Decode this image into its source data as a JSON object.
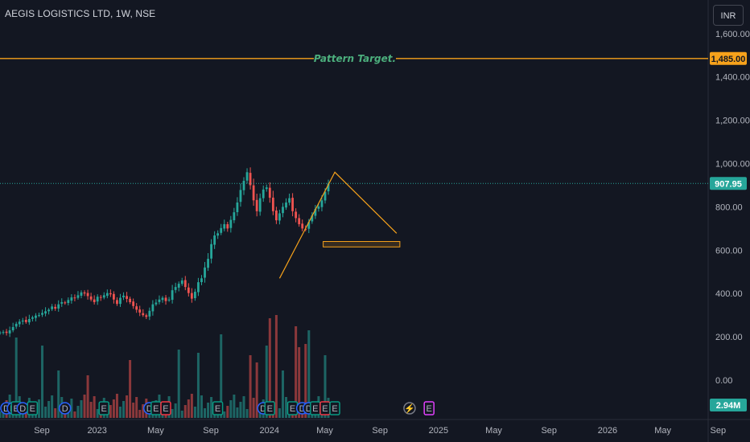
{
  "header": {
    "title": "AEGIS LOGISTICS LTD, 1W, NSE",
    "currency_button": "INR"
  },
  "colors": {
    "background": "#131722",
    "up": "#26a69a",
    "down": "#ef5350",
    "drawing": "#f7a21b",
    "annotation": "#4caf7d"
  },
  "chart_data": {
    "type": "candlestick",
    "y_ticks": [
      "1,600.00",
      "1,400.00",
      "1,200.00",
      "1,000.00",
      "800.00",
      "600.00",
      "400.00",
      "200.00",
      "0.00"
    ],
    "y_tick_values": [
      1600,
      1400,
      1200,
      1000,
      800,
      600,
      400,
      200,
      0
    ],
    "x_ticks": [
      {
        "label": "Sep",
        "t": 0
      },
      {
        "label": "2023",
        "t": 17
      },
      {
        "label": "May",
        "t": 35
      },
      {
        "label": "Sep",
        "t": 52
      },
      {
        "label": "2024",
        "t": 70
      },
      {
        "label": "May",
        "t": 87
      },
      {
        "label": "Sep",
        "t": 104
      },
      {
        "label": "2025",
        "t": 122
      },
      {
        "label": "May",
        "t": 139
      },
      {
        "label": "Sep",
        "t": 156
      },
      {
        "label": "2026",
        "t": 174
      },
      {
        "label": "May",
        "t": 191
      },
      {
        "label": "Sep",
        "t": 208
      }
    ],
    "last_price": 907.95,
    "last_price_label": "907.95",
    "volume_label": "2.94M",
    "target": {
      "value": 1485,
      "label": "1,485.00",
      "text": "Pattern Target."
    },
    "triangle": [
      [
        86,
        470
      ],
      [
        103,
        960
      ],
      [
        122,
        678
      ]
    ],
    "support_zone": [
      [
        90,
        640
      ],
      [
        122,
        615
      ]
    ],
    "closes": [
      220,
      222,
      218,
      230,
      245,
      260,
      270,
      275,
      268,
      282,
      290,
      298,
      300,
      310,
      318,
      325,
      340,
      330,
      350,
      360,
      355,
      370,
      382,
      378,
      392,
      405,
      400,
      388,
      372,
      360,
      385,
      380,
      392,
      402,
      396,
      372,
      352,
      380,
      390,
      375,
      360,
      342,
      325,
      312,
      300,
      292,
      320,
      350,
      358,
      372,
      380,
      365,
      372,
      415,
      430,
      445,
      460,
      430,
      402,
      376,
      408,
      452,
      470,
      520,
      560,
      628,
      668,
      678,
      702,
      720,
      700,
      740,
      775,
      820,
      878,
      920,
      960,
      900,
      830,
      780,
      840,
      880,
      890,
      842,
      780,
      738,
      770,
      800,
      820,
      840,
      780,
      748,
      720,
      700,
      698,
      730,
      760,
      790,
      802,
      830,
      870,
      907.95
    ],
    "events": [
      {
        "t": 0,
        "label": "D",
        "kind": "blue"
      },
      {
        "t": 2,
        "label": "D",
        "kind": "blue"
      },
      {
        "t": 3,
        "label": "E",
        "kind": "green"
      },
      {
        "t": 5,
        "label": "D",
        "kind": "blue"
      },
      {
        "t": 8,
        "label": "E",
        "kind": "green"
      },
      {
        "t": 18,
        "label": "D",
        "kind": "blue"
      },
      {
        "t": 30,
        "label": "E",
        "kind": "green"
      },
      {
        "t": 44,
        "label": "D",
        "kind": "blue"
      },
      {
        "t": 46,
        "label": "E",
        "kind": "green"
      },
      {
        "t": 49,
        "label": "E",
        "kind": "red"
      },
      {
        "t": 65,
        "label": "E",
        "kind": "green"
      },
      {
        "t": 79,
        "label": "D",
        "kind": "blue"
      },
      {
        "t": 81,
        "label": "E",
        "kind": "green"
      },
      {
        "t": 88,
        "label": "E",
        "kind": "green"
      },
      {
        "t": 91,
        "label": "D",
        "kind": "blue"
      },
      {
        "t": 93,
        "label": "D",
        "kind": "blue"
      },
      {
        "t": 95,
        "label": "E",
        "kind": "green"
      },
      {
        "t": 98,
        "label": "E",
        "kind": "red"
      },
      {
        "t": 101,
        "label": "E",
        "kind": "green"
      },
      {
        "t": 124,
        "label": "⚡",
        "kind": "grey"
      },
      {
        "t": 130,
        "label": "E",
        "kind": "magenta"
      }
    ]
  }
}
